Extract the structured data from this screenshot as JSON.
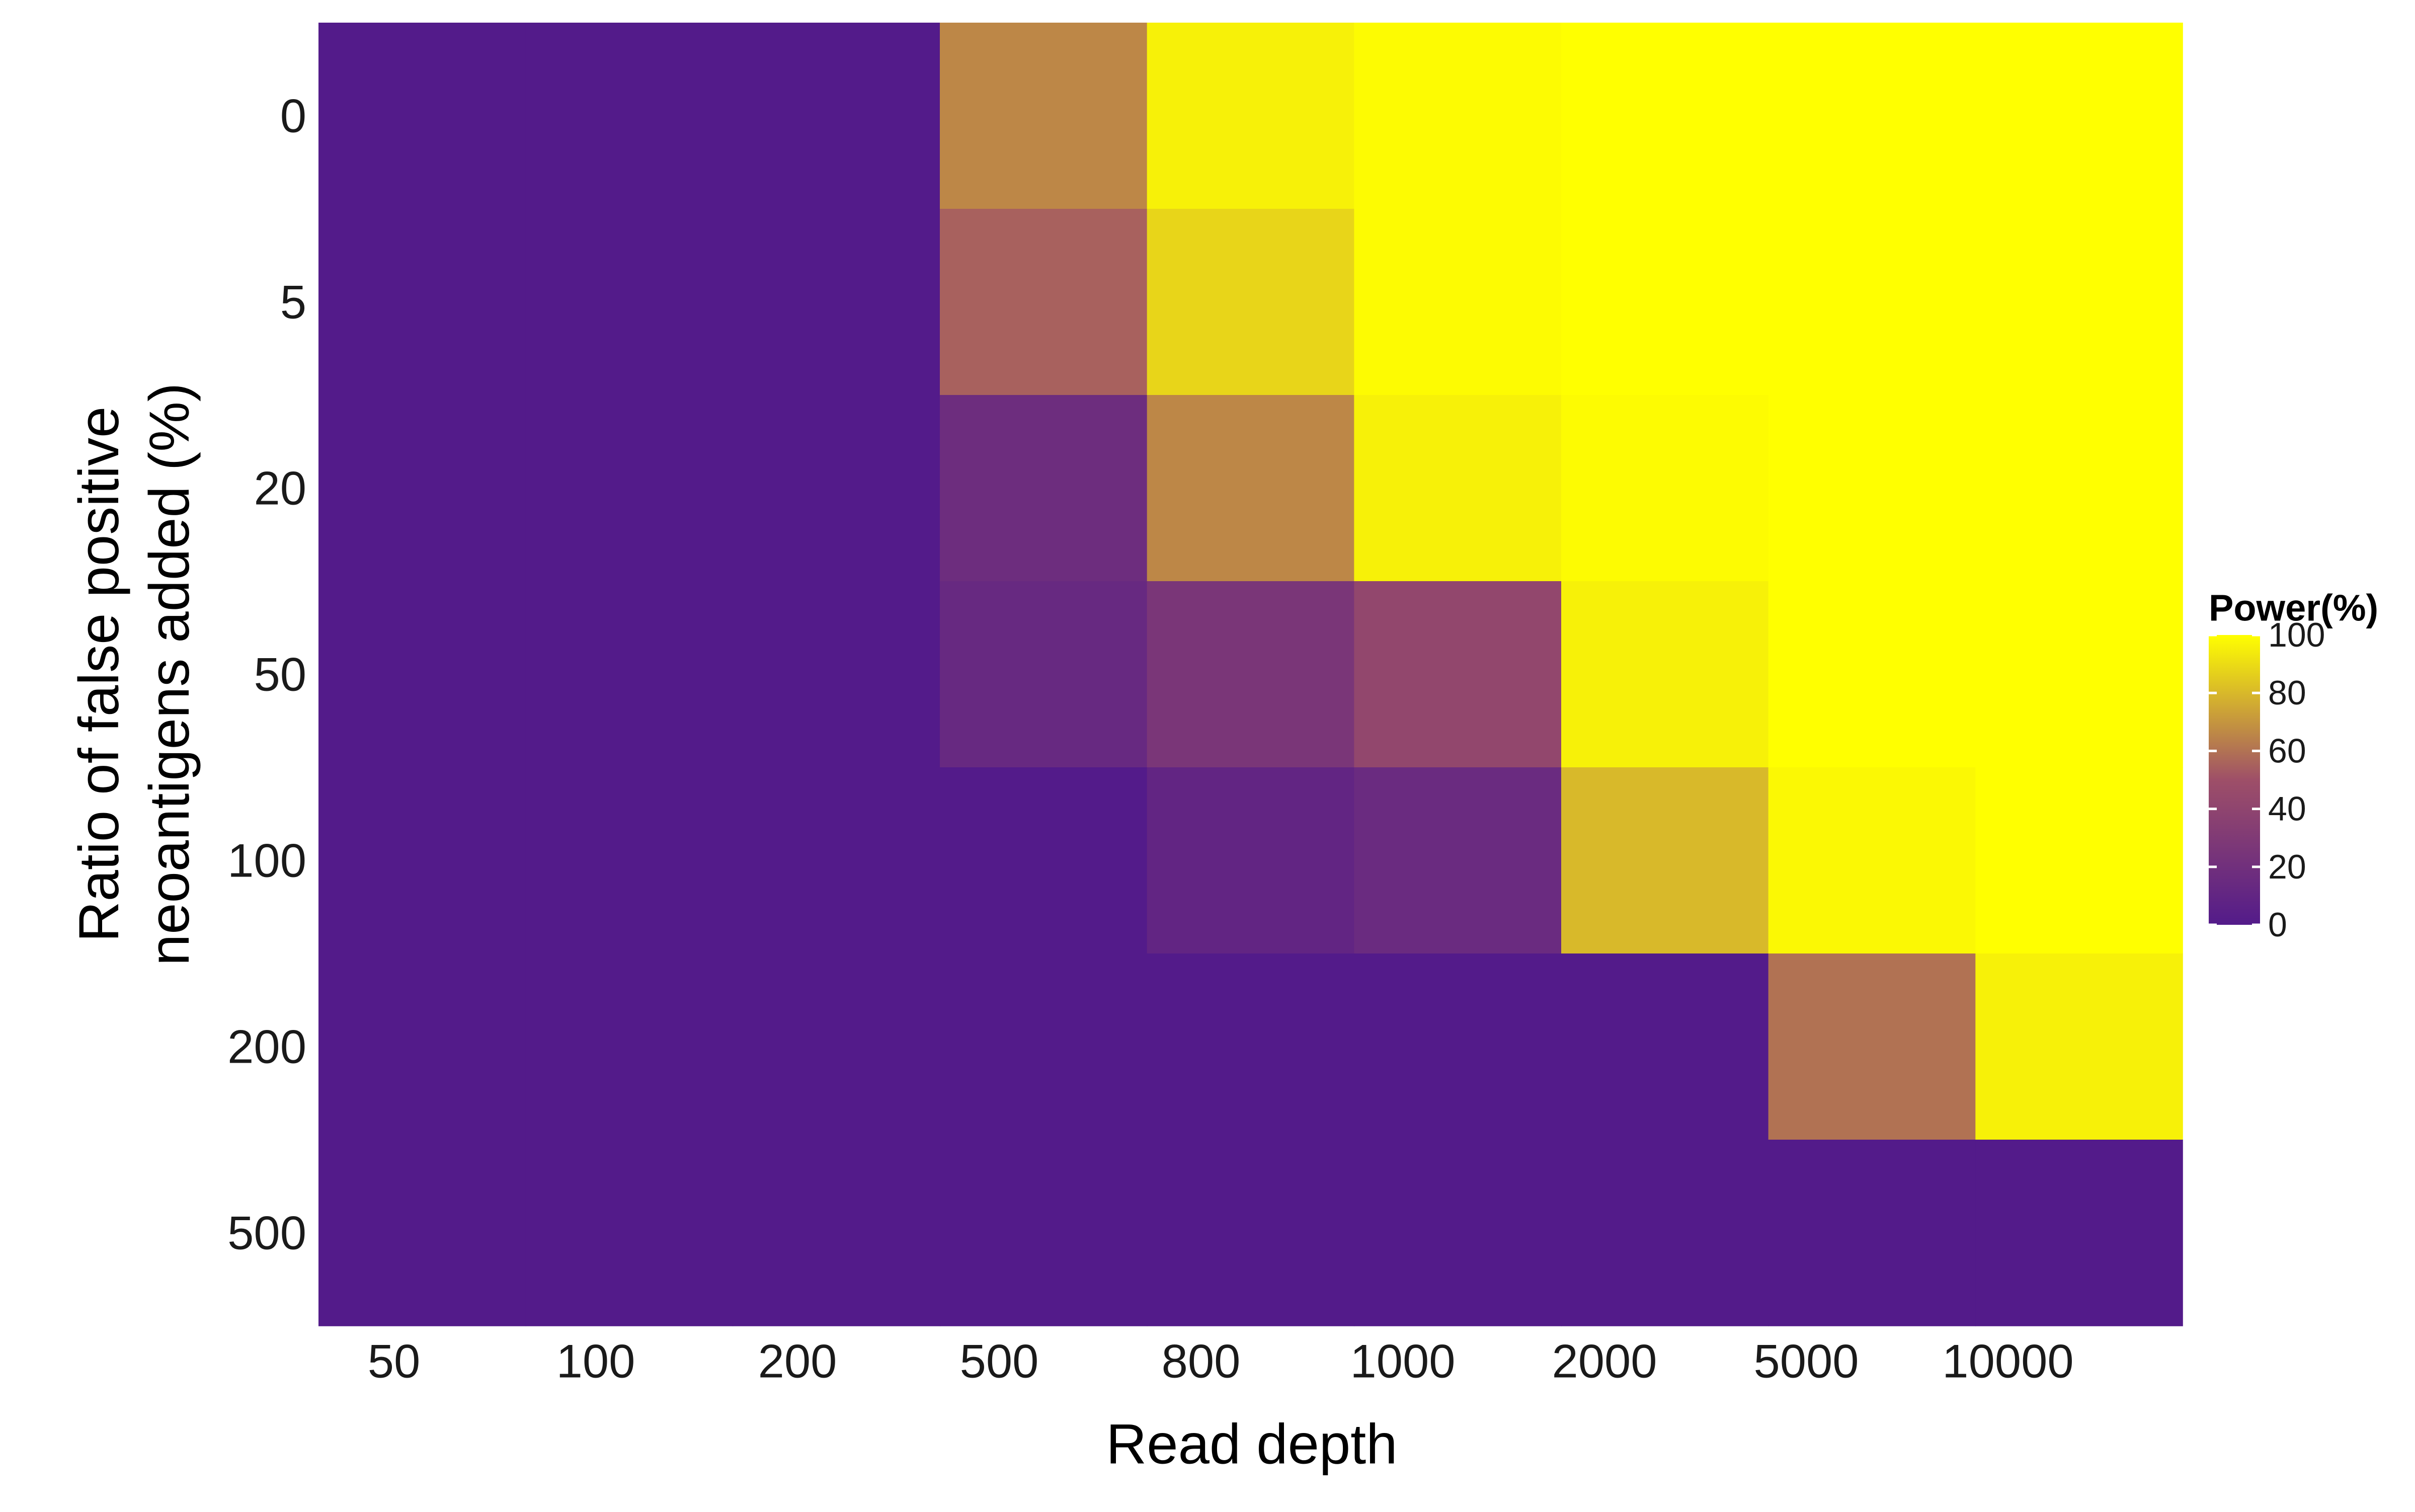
{
  "chart_data": {
    "type": "heatmap",
    "xlabel": "Read depth",
    "ylabel_lines": [
      "Ratio of false positive",
      "neoantigens added (%)"
    ],
    "x_categories": [
      "50",
      "100",
      "200",
      "500",
      "800",
      "1000",
      "2000",
      "5000",
      "10000"
    ],
    "y_categories": [
      "0",
      "5",
      "20",
      "50",
      "100",
      "200",
      "500"
    ],
    "values": [
      [
        0,
        0,
        0,
        66,
        96,
        99,
        100,
        100,
        100
      ],
      [
        0,
        0,
        0,
        55,
        88,
        99,
        100,
        100,
        100
      ],
      [
        0,
        0,
        0,
        17,
        66,
        96,
        99,
        100,
        100
      ],
      [
        0,
        0,
        0,
        13,
        26,
        42,
        96,
        100,
        100
      ],
      [
        0,
        0,
        0,
        0,
        10,
        15,
        80,
        98,
        100
      ],
      [
        0,
        0,
        0,
        0,
        0,
        0,
        0,
        60,
        96
      ],
      [
        0,
        0,
        0,
        0,
        0,
        0,
        0,
        0,
        0
      ]
    ],
    "legend": {
      "title": "Power(%)",
      "ticks": [
        0,
        20,
        40,
        60,
        80,
        100
      ],
      "range": [
        0,
        100
      ],
      "position": "right"
    },
    "colorscale": {
      "low": "#531b8a",
      "mid": "#9e4f68",
      "high": "#ffff00"
    },
    "grid": false
  }
}
